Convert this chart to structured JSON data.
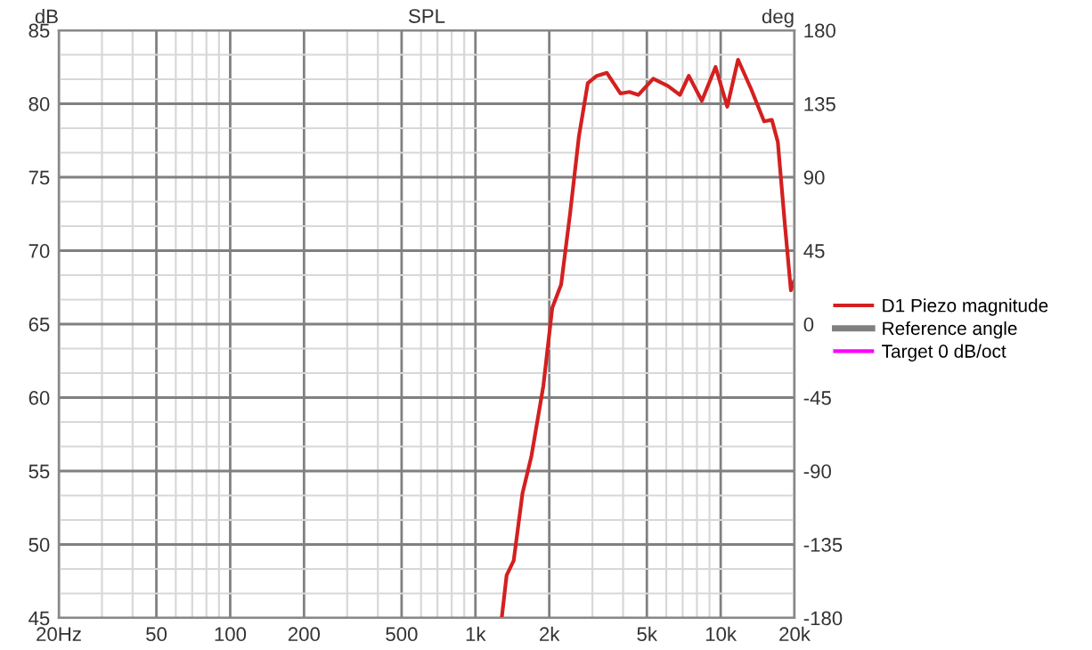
{
  "chart_data": {
    "type": "line",
    "title": "SPL",
    "ylabel": "dB",
    "y2label": "deg",
    "series": [
      {
        "name": "D1 Piezo magnitude",
        "color": "#d42020",
        "x": [
          1280,
          1340,
          1432,
          1556,
          1691,
          1892,
          2057,
          2236,
          2431,
          2643,
          2872,
          3124,
          3435,
          3900,
          4246,
          4615,
          5308,
          6100,
          6820,
          7413,
          8380,
          9530,
          10640,
          11770,
          13310,
          15030,
          16170,
          17100,
          18290,
          19330,
          19900
        ],
        "values": [
          45.0,
          47.9,
          48.9,
          53.5,
          56.0,
          60.8,
          66.1,
          67.7,
          72.5,
          77.8,
          81.4,
          81.9,
          82.1,
          80.7,
          80.8,
          80.6,
          81.7,
          81.2,
          80.6,
          81.9,
          80.2,
          82.5,
          79.8,
          83.0,
          81.0,
          78.8,
          78.9,
          77.4,
          71.7,
          67.3,
          67.9
        ]
      },
      {
        "name": "Reference angle",
        "color": "#808080",
        "axis": "y2"
      },
      {
        "name": "Target 0 dB/oct",
        "color": "#ff00ff"
      }
    ],
    "log": "x",
    "xlim": [
      20,
      20000
    ],
    "xticks": [
      {
        "value": 20,
        "label": "20Hz"
      },
      50,
      100,
      200,
      500,
      {
        "value": 1000,
        "label": "1k"
      },
      {
        "value": 2000,
        "label": "2k"
      },
      {
        "value": 5000,
        "label": "5k"
      },
      {
        "value": 10000,
        "label": "10k"
      },
      {
        "value": 20000,
        "label": "20k"
      }
    ],
    "ylim": [
      45,
      85
    ],
    "yticks": [
      45,
      50,
      55,
      60,
      65,
      70,
      75,
      80,
      85
    ],
    "y2lim": [
      -180,
      180
    ],
    "y2ticks": [
      -180,
      -135,
      -90,
      -45,
      0,
      45,
      90,
      135,
      180
    ],
    "grid": true,
    "legend": "right",
    "marker": "none",
    "line_style": "solid"
  }
}
